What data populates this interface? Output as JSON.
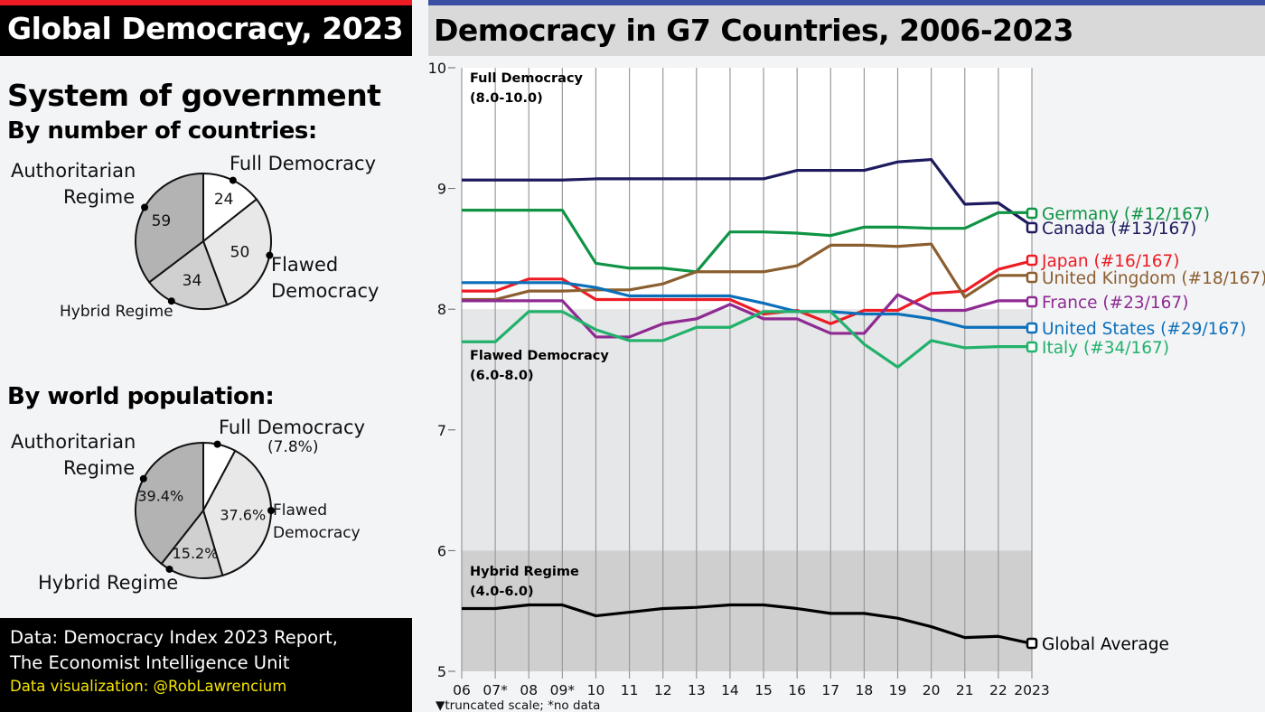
{
  "left_panel": {
    "title": "Global Democracy, 2023",
    "heading": "System of government",
    "pie1": {
      "subtitle": "By number of countries:",
      "slices": [
        {
          "label": "Full Democracy",
          "value": 24,
          "display": "24",
          "color": "#ffffff"
        },
        {
          "label": "Flawed Democracy",
          "value": 50,
          "display": "50",
          "color": "#e8e8e8"
        },
        {
          "label": "Hybrid Regime",
          "value": 34,
          "display": "34",
          "color": "#d0d0d0"
        },
        {
          "label": "Authoritarian Regime",
          "value": 59,
          "display": "59",
          "color": "#b3b3b3"
        }
      ],
      "labels": {
        "full_democracy": "Full Democracy",
        "flawed_1": "Flawed",
        "flawed_2": "Democracy",
        "hybrid": "Hybrid Regime",
        "auth_1": "Authoritarian",
        "auth_2": "Regime"
      }
    },
    "pie2": {
      "subtitle": "By world population:",
      "slices": [
        {
          "label": "Full Democracy",
          "value": 7.8,
          "display": "",
          "color": "#ffffff"
        },
        {
          "label": "Flawed Democracy",
          "value": 37.6,
          "display": "37.6%",
          "color": "#e8e8e8"
        },
        {
          "label": "Hybrid Regime",
          "value": 15.2,
          "display": "15.2%",
          "color": "#d0d0d0"
        },
        {
          "label": "Authoritarian Regime",
          "value": 39.4,
          "display": "39.4%",
          "color": "#b3b3b3"
        }
      ],
      "labels": {
        "full_democracy": "Full Democracy",
        "full_pct": "(7.8%)",
        "flawed_1": "Flawed",
        "flawed_2": "Democracy",
        "hybrid": "Hybrid Regime",
        "auth_1": "Authoritarian",
        "auth_2": "Regime"
      }
    },
    "footer": {
      "line1": "Data: Democracy Index 2023 Report,",
      "line2": "The Economist Intelligence Unit",
      "credit": "Data visualization: @RobLawrencium"
    },
    "accent_color": "#ee1c25"
  },
  "right_panel": {
    "title": "Democracy in G7 Countries, 2006-2023",
    "accent_color": "#3a4fa3"
  },
  "chart_data": [
    {
      "type": "pie",
      "title": "By number of countries:",
      "categories": [
        "Full Democracy",
        "Flawed Democracy",
        "Hybrid Regime",
        "Authoritarian Regime"
      ],
      "values": [
        24,
        50,
        34,
        59
      ]
    },
    {
      "type": "pie",
      "title": "By world population:",
      "categories": [
        "Full Democracy",
        "Flawed Democracy",
        "Hybrid Regime",
        "Authoritarian Regime"
      ],
      "values": [
        7.8,
        37.6,
        15.2,
        39.4
      ],
      "unit": "%"
    },
    {
      "type": "line",
      "title": "Democracy in G7 Countries, 2006-2023",
      "x": [
        "06",
        "07*",
        "08",
        "09*",
        "10",
        "11",
        "12",
        "13",
        "14",
        "15",
        "16",
        "17",
        "18",
        "19",
        "20",
        "21",
        "22",
        "2023"
      ],
      "ylim": [
        5,
        10
      ],
      "yticks": [
        "5",
        "6",
        "7",
        "8",
        "9",
        "10"
      ],
      "grid": "vertical",
      "bands": [
        {
          "name": "Full Democracy",
          "range_label": "(8.0-10.0)",
          "from": 8,
          "to": 10,
          "color": "#ffffff"
        },
        {
          "name": "Flawed Democracy",
          "range_label": "(6.0-8.0)",
          "from": 6,
          "to": 8,
          "color": "#e6e7e8"
        },
        {
          "name": "Hybrid Regime",
          "range_label": "(4.0-6.0)",
          "from": 5,
          "to": 6,
          "color": "#cfcfcf"
        }
      ],
      "footnote": "▼truncated scale;  *no data",
      "legend_placement": "right (end of lines)",
      "series": [
        {
          "name": "Canada",
          "label": "Canada (#13/167)",
          "color": "#1d1b5e",
          "values": [
            9.07,
            9.07,
            9.07,
            9.07,
            9.08,
            9.08,
            9.08,
            9.08,
            9.08,
            9.08,
            9.15,
            9.15,
            9.15,
            9.22,
            9.24,
            8.87,
            8.88,
            8.69
          ]
        },
        {
          "name": "Germany",
          "label": "Germany (#12/167)",
          "color": "#0e9444",
          "values": [
            8.82,
            8.82,
            8.82,
            8.82,
            8.38,
            8.34,
            8.34,
            8.31,
            8.64,
            8.64,
            8.63,
            8.61,
            8.68,
            8.68,
            8.67,
            8.67,
            8.8,
            8.8
          ]
        },
        {
          "name": "Japan",
          "label": "Japan (#16/167)",
          "color": "#ed1c24",
          "values": [
            8.15,
            8.15,
            8.25,
            8.25,
            8.08,
            8.08,
            8.08,
            8.08,
            8.08,
            7.96,
            7.99,
            7.88,
            7.99,
            7.99,
            8.13,
            8.15,
            8.33,
            8.4
          ]
        },
        {
          "name": "United Kingdom",
          "label": "United Kingdom (#18/167)",
          "color": "#8b5e2f",
          "values": [
            8.08,
            8.08,
            8.15,
            8.15,
            8.16,
            8.16,
            8.21,
            8.31,
            8.31,
            8.31,
            8.36,
            8.53,
            8.53,
            8.52,
            8.54,
            8.1,
            8.28,
            8.28
          ]
        },
        {
          "name": "France",
          "label": "France (#23/167)",
          "color": "#8e2a92",
          "values": [
            8.07,
            8.07,
            8.07,
            8.07,
            7.77,
            7.77,
            7.88,
            7.92,
            8.04,
            7.92,
            7.92,
            7.8,
            7.8,
            8.12,
            7.99,
            7.99,
            8.07,
            8.07
          ]
        },
        {
          "name": "United States",
          "label": "United States (#29/167)",
          "color": "#0b6fba",
          "values": [
            8.22,
            8.22,
            8.22,
            8.22,
            8.18,
            8.11,
            8.11,
            8.11,
            8.11,
            8.05,
            7.98,
            7.98,
            7.96,
            7.96,
            7.92,
            7.85,
            7.85,
            7.85
          ]
        },
        {
          "name": "Italy",
          "label": "Italy (#34/167)",
          "color": "#22b16b",
          "values": [
            7.73,
            7.73,
            7.98,
            7.98,
            7.83,
            7.74,
            7.74,
            7.85,
            7.85,
            7.98,
            7.98,
            7.98,
            7.71,
            7.52,
            7.74,
            7.68,
            7.69,
            7.69
          ]
        },
        {
          "name": "Global Average",
          "label": "Global Average",
          "color": "#000000",
          "values": [
            5.52,
            5.52,
            5.55,
            5.55,
            5.46,
            5.49,
            5.52,
            5.53,
            5.55,
            5.55,
            5.52,
            5.48,
            5.48,
            5.44,
            5.37,
            5.28,
            5.29,
            5.23
          ]
        }
      ]
    }
  ]
}
